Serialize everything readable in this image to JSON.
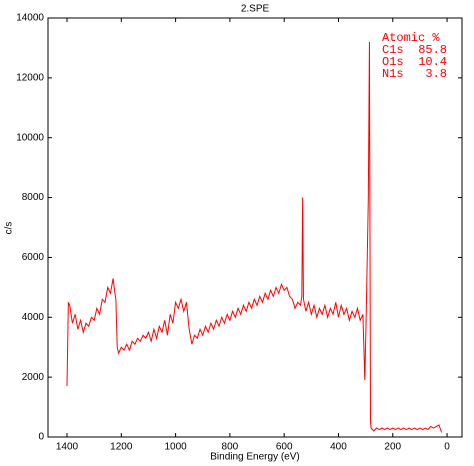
{
  "chart_data": {
    "type": "line",
    "title": "2.SPE",
    "xlabel": "Binding Energy (eV)",
    "ylabel": "c/s",
    "color": "#ff0000",
    "xlim": [
      1470,
      -55
    ],
    "xticks": [
      1400,
      1200,
      1000,
      800,
      600,
      400,
      200,
      0
    ],
    "ylim": [
      0,
      14000
    ],
    "yticks": [
      0,
      2000,
      4000,
      6000,
      8000,
      10000,
      12000,
      14000
    ],
    "annotation": {
      "title": "Atomic %",
      "rows": [
        {
          "label": "C1s",
          "value": 85.8
        },
        {
          "label": "O1s",
          "value": 10.4
        },
        {
          "label": "N1s",
          "value": 3.8
        }
      ]
    },
    "x": [
      1400,
      1395,
      1390,
      1380,
      1370,
      1360,
      1350,
      1340,
      1330,
      1320,
      1310,
      1300,
      1290,
      1280,
      1270,
      1260,
      1250,
      1240,
      1230,
      1225,
      1220,
      1215,
      1210,
      1200,
      1190,
      1180,
      1170,
      1160,
      1150,
      1140,
      1130,
      1120,
      1110,
      1100,
      1090,
      1080,
      1070,
      1060,
      1050,
      1040,
      1030,
      1020,
      1010,
      1000,
      990,
      980,
      970,
      960,
      950,
      940,
      930,
      920,
      910,
      900,
      890,
      880,
      870,
      860,
      850,
      840,
      830,
      820,
      810,
      800,
      790,
      780,
      770,
      760,
      750,
      740,
      730,
      720,
      710,
      700,
      690,
      680,
      670,
      660,
      650,
      640,
      630,
      620,
      610,
      600,
      590,
      580,
      570,
      560,
      550,
      540,
      535,
      532,
      529,
      520,
      510,
      500,
      490,
      480,
      470,
      460,
      450,
      440,
      430,
      420,
      410,
      400,
      390,
      380,
      370,
      360,
      350,
      340,
      330,
      320,
      310,
      303,
      298,
      290,
      286,
      282,
      280,
      270,
      260,
      250,
      240,
      230,
      220,
      210,
      200,
      190,
      180,
      170,
      160,
      150,
      140,
      130,
      120,
      110,
      100,
      90,
      80,
      70,
      60,
      50,
      40,
      30,
      20
    ],
    "values": [
      1700,
      4500,
      4400,
      3800,
      4100,
      3600,
      3900,
      3500,
      3800,
      3700,
      4000,
      3900,
      4300,
      4100,
      4600,
      4500,
      5000,
      4800,
      5300,
      4900,
      4600,
      3000,
      2800,
      3000,
      2900,
      3100,
      2900,
      3200,
      3100,
      3300,
      3200,
      3400,
      3300,
      3500,
      3200,
      3600,
      3300,
      3700,
      3500,
      3900,
      3400,
      4100,
      3800,
      4500,
      4300,
      4600,
      4200,
      4500,
      3600,
      3100,
      3400,
      3300,
      3600,
      3400,
      3700,
      3500,
      3800,
      3600,
      3900,
      3700,
      4000,
      3800,
      4100,
      3900,
      4200,
      4000,
      4300,
      4100,
      4400,
      4200,
      4500,
      4300,
      4600,
      4400,
      4700,
      4500,
      4800,
      4600,
      4900,
      4700,
      5000,
      4800,
      5100,
      4900,
      5000,
      4700,
      4600,
      4300,
      4500,
      4400,
      4700,
      8000,
      4600,
      4200,
      4500,
      4100,
      4400,
      4000,
      4300,
      4100,
      4400,
      4000,
      4300,
      4100,
      4500,
      4000,
      4400,
      4100,
      4300,
      3900,
      4200,
      4000,
      4300,
      3900,
      4100,
      1900,
      4000,
      8000,
      13200,
      500,
      300,
      200,
      300,
      250,
      300,
      250,
      300,
      250,
      300,
      250,
      300,
      250,
      300,
      250,
      300,
      250,
      300,
      250,
      300,
      250,
      300,
      250,
      350,
      300,
      350,
      400,
      150
    ]
  }
}
